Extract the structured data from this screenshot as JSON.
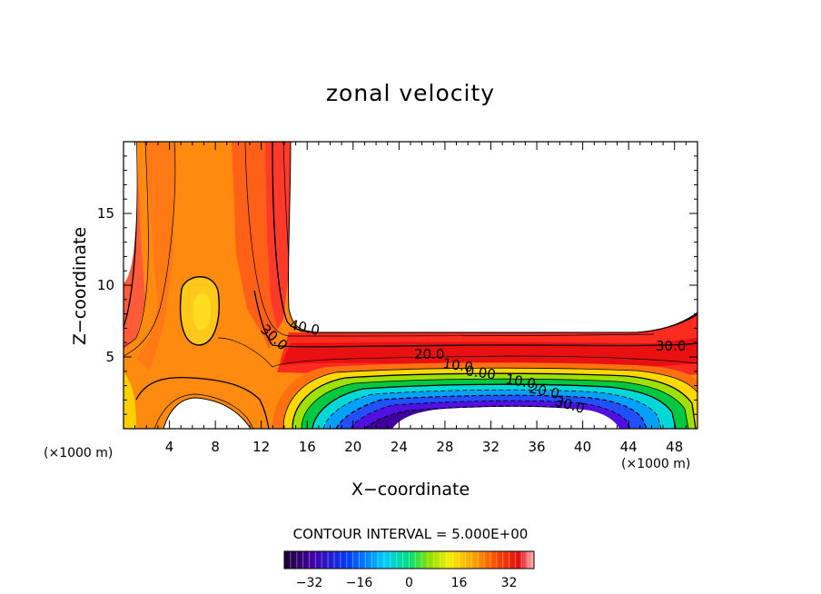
{
  "chart_data": {
    "type": "contour",
    "title": "zonal velocity",
    "xlabel": "X−coordinate",
    "ylabel": "Z−coordinate",
    "x_unit_left": "(×1000 m)",
    "x_unit_right": "(×1000 m)",
    "xlim": [
      0,
      50
    ],
    "ylim": [
      0,
      20
    ],
    "x_ticks": [
      "4",
      "8",
      "12",
      "16",
      "20",
      "24",
      "28",
      "32",
      "36",
      "40",
      "44",
      "48"
    ],
    "y_ticks": [
      "5",
      "10",
      "15"
    ],
    "contour_interval_text": "CONTOUR INTERVAL = 5.000E+00",
    "contour_interval": 5.0,
    "contour_labels": [
      "40.0",
      "30.0",
      "30.0",
      "20.0",
      "10.0",
      "0.00",
      "10.0",
      "20.0",
      "30.0"
    ],
    "colorbar": {
      "range": [
        -40,
        40
      ],
      "ticks": [
        "−32",
        "−16",
        "0",
        "16",
        "32"
      ],
      "tick_values": [
        -32,
        -16,
        0,
        16,
        32
      ]
    },
    "grid": false,
    "blank_regions": "upper-right block and lower-left corners (masked / no data)"
  }
}
